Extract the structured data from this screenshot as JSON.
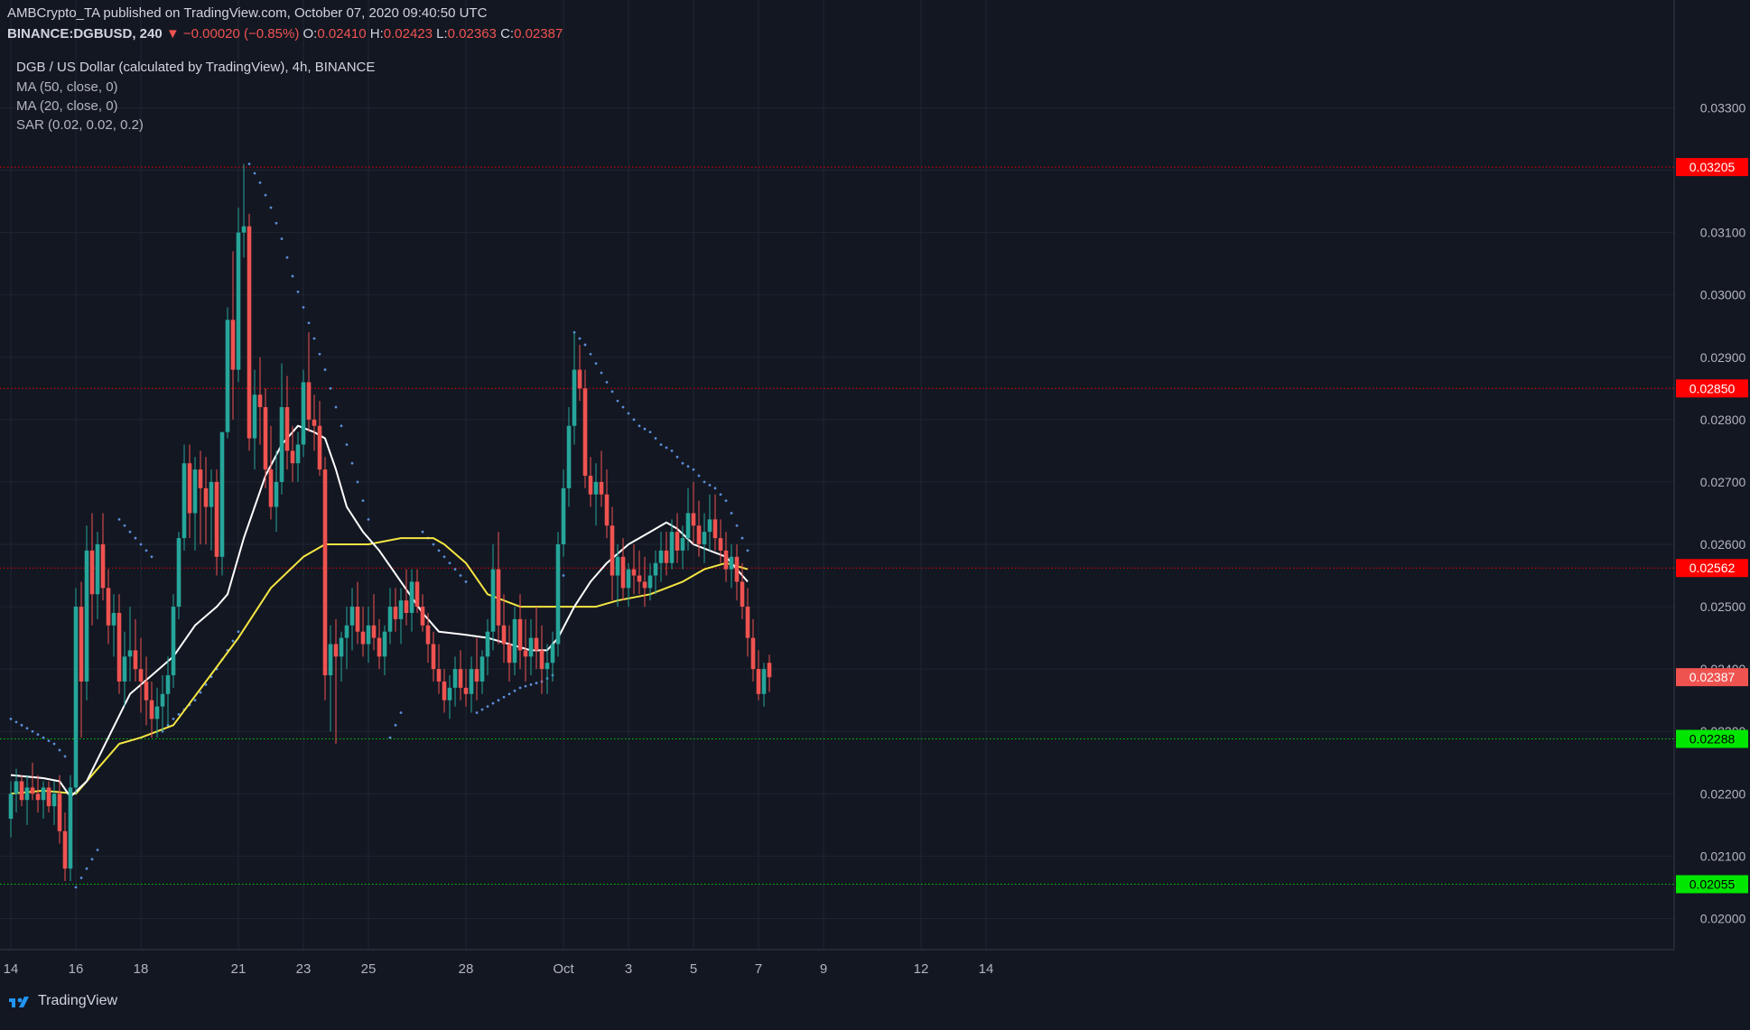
{
  "header": {
    "publisher": "AMBCrypto_TA published on TradingView.com, October 07, 2020 09:40:50 UTC",
    "symbol": "BINANCE:DGBUSD, 240",
    "change": "▼ −0.00020 (−0.85%)",
    "o_label": "O:",
    "o_value": "0.02410",
    "h_label": "H:",
    "h_value": "0.02423",
    "l_label": "L:",
    "l_value": "0.02363",
    "c_label": "C:",
    "c_value": "0.02387"
  },
  "legend": {
    "title": "DGB / US Dollar (calculated by TradingView), 4h, BINANCE",
    "ma50": "MA (50, close, 0)",
    "ma20": "MA (20, close, 0)",
    "sar": "SAR (0.02, 0.02, 0.2)"
  },
  "footer": {
    "brand": "TradingView"
  },
  "colors": {
    "up": "#26a69a",
    "down": "#ef5350",
    "ma50": "#f5e642",
    "ma20": "#ffffff",
    "sar": "#5b8cd6",
    "resistance": "#ff0000",
    "support": "#00e600",
    "price": "#ef5350",
    "grid": "#1e2431",
    "background": "#131722"
  },
  "chart_data": {
    "type": "candlestick",
    "ylim": [
      0.0195,
      0.0336
    ],
    "y_ticks": [
      "0.03300",
      "0.03200",
      "0.03100",
      "0.03000",
      "0.02900",
      "0.02800",
      "0.02700",
      "0.02600",
      "0.02500",
      "0.02400",
      "0.02300",
      "0.02200",
      "0.02100",
      "0.02000"
    ],
    "x_labels": [
      {
        "label": "14",
        "bar": 0
      },
      {
        "label": "16",
        "bar": 12
      },
      {
        "label": "18",
        "bar": 24
      },
      {
        "label": "21",
        "bar": 42
      },
      {
        "label": "23",
        "bar": 54
      },
      {
        "label": "25",
        "bar": 66
      },
      {
        "label": "28",
        "bar": 84
      },
      {
        "label": "Oct",
        "bar": 102
      },
      {
        "label": "3",
        "bar": 114
      },
      {
        "label": "5",
        "bar": 126
      },
      {
        "label": "7",
        "bar": 138
      },
      {
        "label": "9",
        "bar": 150
      },
      {
        "label": "12",
        "bar": 168
      },
      {
        "label": "14",
        "bar": 180
      }
    ],
    "bars_per_day": 6,
    "levels": [
      {
        "value": 0.03205,
        "label": "0.03205",
        "kind": "resistance"
      },
      {
        "value": 0.0285,
        "label": "0.02850",
        "kind": "resistance"
      },
      {
        "value": 0.02562,
        "label": "0.02562",
        "kind": "resistance"
      },
      {
        "value": 0.02288,
        "label": "0.02288",
        "kind": "support"
      },
      {
        "value": 0.02055,
        "label": "0.02055",
        "kind": "support"
      }
    ],
    "current_price": {
      "value": 0.02387,
      "label": "0.02387"
    },
    "ohlc": [
      [
        0.0216,
        0.0222,
        0.0213,
        0.022
      ],
      [
        0.022,
        0.0224,
        0.0217,
        0.0222
      ],
      [
        0.0222,
        0.0223,
        0.0218,
        0.0219
      ],
      [
        0.0219,
        0.0223,
        0.0215,
        0.0221
      ],
      [
        0.0221,
        0.0225,
        0.0219,
        0.022
      ],
      [
        0.022,
        0.0223,
        0.0217,
        0.0219
      ],
      [
        0.0219,
        0.0222,
        0.0216,
        0.0221
      ],
      [
        0.0221,
        0.0222,
        0.0217,
        0.0218
      ],
      [
        0.0218,
        0.0222,
        0.0215,
        0.022
      ],
      [
        0.022,
        0.0223,
        0.0212,
        0.0214
      ],
      [
        0.0214,
        0.0217,
        0.0206,
        0.0208
      ],
      [
        0.0208,
        0.0223,
        0.0206,
        0.0221
      ],
      [
        0.0221,
        0.0253,
        0.022,
        0.025
      ],
      [
        0.025,
        0.0254,
        0.0229,
        0.0238
      ],
      [
        0.0238,
        0.0263,
        0.0235,
        0.0259
      ],
      [
        0.0259,
        0.0265,
        0.0247,
        0.0252
      ],
      [
        0.0252,
        0.0262,
        0.0248,
        0.026
      ],
      [
        0.026,
        0.0265,
        0.0251,
        0.0253
      ],
      [
        0.0253,
        0.0256,
        0.0244,
        0.0247
      ],
      [
        0.0247,
        0.0252,
        0.0242,
        0.0249
      ],
      [
        0.0249,
        0.0252,
        0.0236,
        0.0238
      ],
      [
        0.0238,
        0.0246,
        0.0234,
        0.0242
      ],
      [
        0.0242,
        0.025,
        0.0238,
        0.0243
      ],
      [
        0.0243,
        0.0248,
        0.0238,
        0.024
      ],
      [
        0.024,
        0.0245,
        0.0233,
        0.0238
      ],
      [
        0.0238,
        0.0242,
        0.0231,
        0.0235
      ],
      [
        0.0235,
        0.0238,
        0.0229,
        0.0232
      ],
      [
        0.0232,
        0.0237,
        0.0229,
        0.0234
      ],
      [
        0.0234,
        0.0239,
        0.023,
        0.0236
      ],
      [
        0.0236,
        0.0242,
        0.0231,
        0.0239
      ],
      [
        0.0239,
        0.0252,
        0.0237,
        0.025
      ],
      [
        0.025,
        0.0262,
        0.0248,
        0.0261
      ],
      [
        0.0261,
        0.0276,
        0.0259,
        0.0273
      ],
      [
        0.0273,
        0.0276,
        0.0261,
        0.0265
      ],
      [
        0.0265,
        0.0274,
        0.0259,
        0.0272
      ],
      [
        0.0272,
        0.0275,
        0.026,
        0.0269
      ],
      [
        0.0269,
        0.0274,
        0.026,
        0.0266
      ],
      [
        0.0266,
        0.0272,
        0.0259,
        0.027
      ],
      [
        0.027,
        0.0272,
        0.0255,
        0.0258
      ],
      [
        0.0258,
        0.0278,
        0.0255,
        0.0278
      ],
      [
        0.0278,
        0.0298,
        0.0277,
        0.0296
      ],
      [
        0.0296,
        0.0307,
        0.028,
        0.0288
      ],
      [
        0.0288,
        0.0314,
        0.0286,
        0.031
      ],
      [
        0.031,
        0.0321,
        0.0306,
        0.0311
      ],
      [
        0.0311,
        0.0313,
        0.0275,
        0.0277
      ],
      [
        0.0277,
        0.0288,
        0.0272,
        0.0284
      ],
      [
        0.0284,
        0.029,
        0.0276,
        0.0282
      ],
      [
        0.0282,
        0.0285,
        0.0269,
        0.0272
      ],
      [
        0.0272,
        0.0279,
        0.0264,
        0.0266
      ],
      [
        0.0266,
        0.0275,
        0.0262,
        0.027
      ],
      [
        0.027,
        0.0289,
        0.0268,
        0.0282
      ],
      [
        0.0282,
        0.0287,
        0.0272,
        0.0275
      ],
      [
        0.0275,
        0.0279,
        0.027,
        0.0273
      ],
      [
        0.0273,
        0.0278,
        0.027,
        0.0276
      ],
      [
        0.0276,
        0.0288,
        0.0274,
        0.0286
      ],
      [
        0.0286,
        0.0294,
        0.0278,
        0.028
      ],
      [
        0.028,
        0.0284,
        0.0275,
        0.0279
      ],
      [
        0.0279,
        0.0283,
        0.0271,
        0.0272
      ],
      [
        0.0272,
        0.0274,
        0.0235,
        0.0239
      ],
      [
        0.0239,
        0.0247,
        0.023,
        0.0244
      ],
      [
        0.0244,
        0.0248,
        0.0228,
        0.0242
      ],
      [
        0.0242,
        0.0246,
        0.0238,
        0.0245
      ],
      [
        0.0245,
        0.025,
        0.024,
        0.0247
      ],
      [
        0.0247,
        0.0253,
        0.0243,
        0.025
      ],
      [
        0.025,
        0.0254,
        0.0244,
        0.0246
      ],
      [
        0.0246,
        0.025,
        0.0242,
        0.0244
      ],
      [
        0.0244,
        0.025,
        0.0241,
        0.0247
      ],
      [
        0.0247,
        0.0252,
        0.0243,
        0.0245
      ],
      [
        0.0245,
        0.0248,
        0.024,
        0.0242
      ],
      [
        0.0242,
        0.0247,
        0.0239,
        0.0246
      ],
      [
        0.0246,
        0.0253,
        0.0244,
        0.025
      ],
      [
        0.025,
        0.0253,
        0.0246,
        0.0248
      ],
      [
        0.0248,
        0.0253,
        0.0244,
        0.0251
      ],
      [
        0.0251,
        0.0256,
        0.0247,
        0.0249
      ],
      [
        0.0249,
        0.0256,
        0.0246,
        0.0254
      ],
      [
        0.0254,
        0.0256,
        0.0249,
        0.025
      ],
      [
        0.025,
        0.0252,
        0.0246,
        0.0247
      ],
      [
        0.0247,
        0.0249,
        0.0241,
        0.0244
      ],
      [
        0.0244,
        0.0246,
        0.0238,
        0.024
      ],
      [
        0.024,
        0.0244,
        0.0236,
        0.0238
      ],
      [
        0.0238,
        0.024,
        0.0233,
        0.0235
      ],
      [
        0.0235,
        0.0239,
        0.0232,
        0.0237
      ],
      [
        0.0237,
        0.0242,
        0.0234,
        0.024
      ],
      [
        0.024,
        0.0243,
        0.0235,
        0.0237
      ],
      [
        0.0237,
        0.024,
        0.0234,
        0.0236
      ],
      [
        0.0236,
        0.0242,
        0.0233,
        0.024
      ],
      [
        0.024,
        0.0245,
        0.0235,
        0.0238
      ],
      [
        0.0238,
        0.0243,
        0.0236,
        0.0242
      ],
      [
        0.0242,
        0.0248,
        0.0239,
        0.0246
      ],
      [
        0.0246,
        0.026,
        0.0243,
        0.0256
      ],
      [
        0.0256,
        0.0262,
        0.0244,
        0.0247
      ],
      [
        0.0247,
        0.0252,
        0.0241,
        0.0244
      ],
      [
        0.0244,
        0.0247,
        0.0238,
        0.0241
      ],
      [
        0.0241,
        0.025,
        0.0239,
        0.0248
      ],
      [
        0.0248,
        0.0252,
        0.024,
        0.0243
      ],
      [
        0.0243,
        0.0248,
        0.0238,
        0.0242
      ],
      [
        0.0242,
        0.0248,
        0.0239,
        0.0245
      ],
      [
        0.0245,
        0.025,
        0.024,
        0.0243
      ],
      [
        0.0243,
        0.0247,
        0.0236,
        0.024
      ],
      [
        0.024,
        0.0244,
        0.0236,
        0.0241
      ],
      [
        0.0241,
        0.0246,
        0.0238,
        0.0244
      ],
      [
        0.0244,
        0.0262,
        0.0242,
        0.026
      ],
      [
        0.026,
        0.0272,
        0.0258,
        0.0269
      ],
      [
        0.0269,
        0.0282,
        0.0266,
        0.0279
      ],
      [
        0.0279,
        0.0294,
        0.0276,
        0.0288
      ],
      [
        0.0288,
        0.0292,
        0.0283,
        0.0285
      ],
      [
        0.0285,
        0.0288,
        0.0269,
        0.0271
      ],
      [
        0.0271,
        0.0274,
        0.0266,
        0.0268
      ],
      [
        0.0268,
        0.0273,
        0.0263,
        0.027
      ],
      [
        0.027,
        0.0275,
        0.0266,
        0.0268
      ],
      [
        0.0268,
        0.0272,
        0.0261,
        0.0263
      ],
      [
        0.0263,
        0.0266,
        0.0251,
        0.0255
      ],
      [
        0.0255,
        0.026,
        0.025,
        0.0258
      ],
      [
        0.0258,
        0.0261,
        0.0251,
        0.0253
      ],
      [
        0.0253,
        0.0257,
        0.025,
        0.0256
      ],
      [
        0.0256,
        0.026,
        0.0252,
        0.0255
      ],
      [
        0.0255,
        0.0259,
        0.0252,
        0.0254
      ],
      [
        0.0254,
        0.0258,
        0.025,
        0.0253
      ],
      [
        0.0253,
        0.0257,
        0.0251,
        0.0255
      ],
      [
        0.0255,
        0.0259,
        0.0252,
        0.0257
      ],
      [
        0.0257,
        0.0262,
        0.0254,
        0.0259
      ],
      [
        0.0259,
        0.0262,
        0.0255,
        0.0257
      ],
      [
        0.0257,
        0.0264,
        0.0256,
        0.0262
      ],
      [
        0.0262,
        0.0265,
        0.0257,
        0.0259
      ],
      [
        0.0259,
        0.0263,
        0.0256,
        0.0261
      ],
      [
        0.0261,
        0.0269,
        0.0259,
        0.0265
      ],
      [
        0.0265,
        0.027,
        0.026,
        0.0263
      ],
      [
        0.0263,
        0.0267,
        0.0258,
        0.026
      ],
      [
        0.026,
        0.0265,
        0.0257,
        0.0262
      ],
      [
        0.0262,
        0.0268,
        0.0259,
        0.0264
      ],
      [
        0.0264,
        0.0268,
        0.0259,
        0.0261
      ],
      [
        0.0261,
        0.0264,
        0.0257,
        0.0259
      ],
      [
        0.0259,
        0.0262,
        0.0254,
        0.0256
      ],
      [
        0.0256,
        0.026,
        0.0253,
        0.0258
      ],
      [
        0.0258,
        0.026,
        0.0251,
        0.0254
      ],
      [
        0.0254,
        0.0257,
        0.0248,
        0.025
      ],
      [
        0.025,
        0.0253,
        0.0242,
        0.0245
      ],
      [
        0.0245,
        0.0248,
        0.0238,
        0.024
      ],
      [
        0.024,
        0.0243,
        0.0235,
        0.0236
      ],
      [
        0.0236,
        0.0241,
        0.0234,
        0.024
      ],
      [
        0.0241,
        0.02423,
        0.02363,
        0.02387
      ]
    ],
    "ma20": [
      [
        0,
        0.0223
      ],
      [
        6,
        0.02225
      ],
      [
        9,
        0.0222
      ],
      [
        11,
        0.02195
      ],
      [
        14,
        0.0222
      ],
      [
        18,
        0.0229
      ],
      [
        22,
        0.0236
      ],
      [
        26,
        0.0239
      ],
      [
        30,
        0.0242
      ],
      [
        34,
        0.0247
      ],
      [
        38,
        0.025
      ],
      [
        40,
        0.0252
      ],
      [
        43,
        0.0261
      ],
      [
        47,
        0.0271
      ],
      [
        50,
        0.0276
      ],
      [
        53,
        0.0279
      ],
      [
        56,
        0.0278
      ],
      [
        58,
        0.0277
      ],
      [
        60,
        0.0272
      ],
      [
        62,
        0.0266
      ],
      [
        65,
        0.0262
      ],
      [
        68,
        0.0259
      ],
      [
        72,
        0.0254
      ],
      [
        76,
        0.0249
      ],
      [
        79,
        0.0246
      ],
      [
        84,
        0.02455
      ],
      [
        88,
        0.0245
      ],
      [
        92,
        0.0244
      ],
      [
        96,
        0.0243
      ],
      [
        99,
        0.0243
      ],
      [
        101,
        0.0245
      ],
      [
        104,
        0.025
      ],
      [
        107,
        0.0254
      ],
      [
        110,
        0.0257
      ],
      [
        114,
        0.026
      ],
      [
        118,
        0.0262
      ],
      [
        121,
        0.02635
      ],
      [
        123,
        0.02625
      ],
      [
        126,
        0.026
      ],
      [
        129,
        0.0259
      ],
      [
        132,
        0.0258
      ],
      [
        134,
        0.0256
      ],
      [
        136,
        0.0254
      ]
    ],
    "ma50": [
      [
        0,
        0.022
      ],
      [
        6,
        0.02205
      ],
      [
        12,
        0.022
      ],
      [
        16,
        0.0224
      ],
      [
        20,
        0.0228
      ],
      [
        24,
        0.0229
      ],
      [
        30,
        0.0231
      ],
      [
        36,
        0.0238
      ],
      [
        42,
        0.0245
      ],
      [
        48,
        0.0253
      ],
      [
        54,
        0.0258
      ],
      [
        58,
        0.026
      ],
      [
        62,
        0.026
      ],
      [
        66,
        0.026
      ],
      [
        72,
        0.0261
      ],
      [
        78,
        0.0261
      ],
      [
        80,
        0.026
      ],
      [
        84,
        0.0257
      ],
      [
        88,
        0.0252
      ],
      [
        94,
        0.025
      ],
      [
        98,
        0.025
      ],
      [
        102,
        0.025
      ],
      [
        108,
        0.025
      ],
      [
        112,
        0.0251
      ],
      [
        118,
        0.0252
      ],
      [
        124,
        0.0254
      ],
      [
        128,
        0.0256
      ],
      [
        132,
        0.0257
      ],
      [
        136,
        0.0256
      ]
    ],
    "sar": [
      [
        0,
        0.0232
      ],
      [
        2,
        0.0231
      ],
      [
        4,
        0.023
      ],
      [
        6,
        0.0229
      ],
      [
        8,
        0.0228
      ],
      [
        10,
        0.0226
      ],
      [
        12,
        0.0205
      ],
      [
        14,
        0.0208
      ],
      [
        16,
        0.0211
      ],
      [
        20,
        0.0264
      ],
      [
        22,
        0.0262
      ],
      [
        24,
        0.026
      ],
      [
        26,
        0.0258
      ],
      [
        28,
        0.023
      ],
      [
        30,
        0.0232
      ],
      [
        34,
        0.0235
      ],
      [
        38,
        0.024
      ],
      [
        42,
        0.0246
      ],
      [
        44,
        0.0321
      ],
      [
        46,
        0.0318
      ],
      [
        48,
        0.0314
      ],
      [
        50,
        0.0309
      ],
      [
        52,
        0.0303
      ],
      [
        54,
        0.0298
      ],
      [
        56,
        0.0293
      ],
      [
        58,
        0.0288
      ],
      [
        60,
        0.0282
      ],
      [
        62,
        0.0276
      ],
      [
        64,
        0.027
      ],
      [
        66,
        0.0264
      ],
      [
        70,
        0.0229
      ],
      [
        72,
        0.0233
      ],
      [
        76,
        0.0262
      ],
      [
        78,
        0.026
      ],
      [
        80,
        0.0258
      ],
      [
        82,
        0.0256
      ],
      [
        84,
        0.0254
      ],
      [
        86,
        0.0233
      ],
      [
        90,
        0.0235
      ],
      [
        94,
        0.0237
      ],
      [
        98,
        0.0238
      ],
      [
        100,
        0.0239
      ],
      [
        102,
        0.0255
      ],
      [
        104,
        0.0294
      ],
      [
        106,
        0.0292
      ],
      [
        108,
        0.0289
      ],
      [
        110,
        0.0286
      ],
      [
        112,
        0.0283
      ],
      [
        114,
        0.0281
      ],
      [
        116,
        0.0279
      ],
      [
        118,
        0.0278
      ],
      [
        120,
        0.0276
      ],
      [
        122,
        0.0275
      ],
      [
        124,
        0.0273
      ],
      [
        126,
        0.0272
      ],
      [
        128,
        0.027
      ],
      [
        130,
        0.0269
      ],
      [
        132,
        0.0267
      ],
      [
        134,
        0.0263
      ],
      [
        136,
        0.0259
      ]
    ]
  }
}
